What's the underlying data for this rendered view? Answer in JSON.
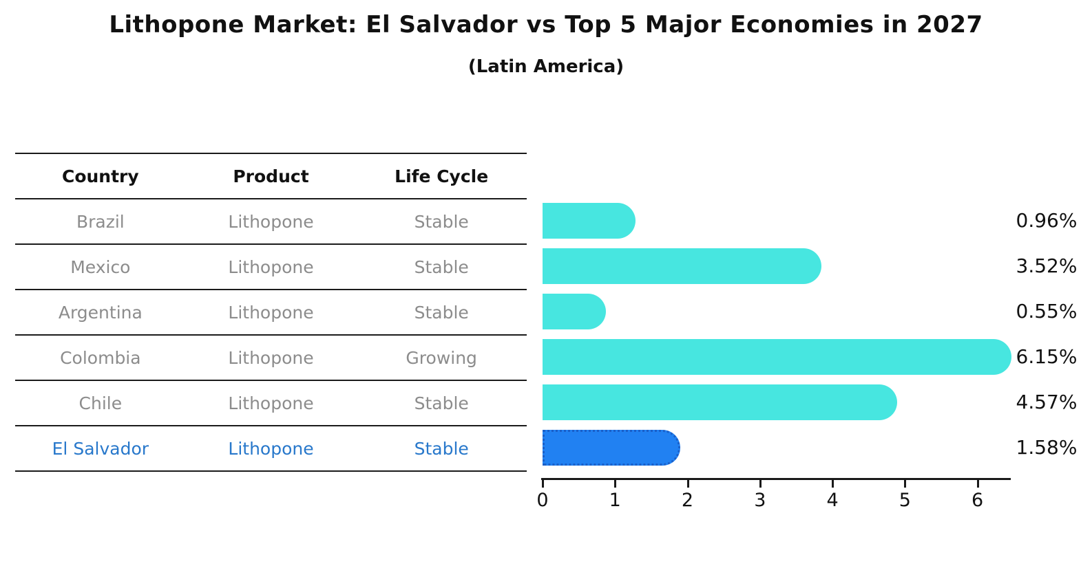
{
  "title": "Lithopone Market: El Salvador vs Top 5 Major Economies in 2027",
  "subtitle": "(Latin America)",
  "table": {
    "headers": [
      "Country",
      "Product",
      "Life Cycle"
    ],
    "rows": [
      {
        "country": "Brazil",
        "product": "Lithopone",
        "life_cycle": "Stable",
        "highlighted": false
      },
      {
        "country": "Mexico",
        "product": "Lithopone",
        "life_cycle": "Stable",
        "highlighted": false
      },
      {
        "country": "Argentina",
        "product": "Lithopone",
        "life_cycle": "Stable",
        "highlighted": false
      },
      {
        "country": "Colombia",
        "product": "Lithopone",
        "life_cycle": "Growing",
        "highlighted": false
      },
      {
        "country": "Chile",
        "product": "Lithopone",
        "life_cycle": "Stable",
        "highlighted": false
      },
      {
        "country": "El Salvador",
        "product": "Lithopone",
        "life_cycle": "Stable",
        "highlighted": true
      }
    ]
  },
  "chart_data": {
    "type": "bar",
    "orientation": "horizontal",
    "title": "Lithopone Market: El Salvador vs Top 5 Major Economies in 2027 (Latin America)",
    "xlabel": "",
    "ylabel": "",
    "categories": [
      "Brazil",
      "Mexico",
      "Argentina",
      "Colombia",
      "Chile",
      "El Salvador"
    ],
    "values": [
      0.96,
      3.52,
      0.55,
      6.15,
      4.57,
      1.58
    ],
    "data_labels": [
      "0.96%",
      "3.52%",
      "0.55%",
      "6.15%",
      "4.57%",
      "1.58%"
    ],
    "xlim": [
      0,
      6.46
    ],
    "x_ticks": [
      0,
      1,
      2,
      3,
      4,
      5,
      6
    ],
    "grid": false,
    "legend": false,
    "highlight_index": 5
  },
  "colors": {
    "bar": "#47E6E0",
    "highlight_bar": "#2181F2",
    "highlight_border": "#1A5FC8",
    "highlight_text": "#2878CB",
    "row_text": "#8C8C8C",
    "header_text": "#111111",
    "axis": "#1A1A1A"
  }
}
